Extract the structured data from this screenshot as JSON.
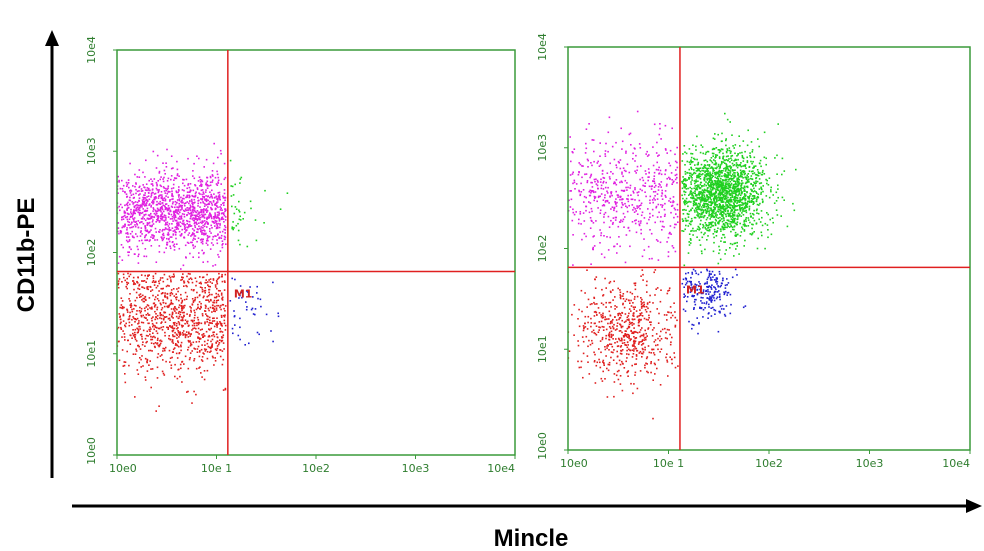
{
  "figure": {
    "ylabel": "CD11b-PE",
    "xlabel": "Mincle"
  },
  "chart_data": [
    {
      "type": "scatter",
      "scale": "log",
      "xlim": [
        1,
        10000
      ],
      "ylim": [
        1,
        10000
      ],
      "x_ticks": [
        "10e0",
        "10e 1",
        "10e2",
        "10e3",
        "10e4"
      ],
      "y_ticks": [
        "10e0",
        "10e1",
        "10e2",
        "10e3",
        "10e4"
      ],
      "quadrant_gate": {
        "x": 13,
        "y": 65
      },
      "gate_label": "M1",
      "colors": {
        "upper_left": "#e020e0",
        "upper_right": "#20d020",
        "lower_left": "#e02020",
        "lower_right": "#2020d0",
        "frame": "#3a9a3a",
        "gate": "#e02020"
      },
      "populations": [
        {
          "quadrant": "upper_left",
          "count": 1300,
          "x_range": [
            1,
            12.5
          ],
          "y_center": 250,
          "y_spread": 0.2
        },
        {
          "quadrant": "lower_left",
          "count": 1000,
          "x_range": [
            1,
            12.5
          ],
          "y_center": 22,
          "y_spread": 0.28
        },
        {
          "quadrant": "upper_right",
          "count": 40,
          "x_center": 16,
          "y_center": 250,
          "spread": 0.18
        },
        {
          "quadrant": "lower_right",
          "count": 45,
          "x_center": 20,
          "y_center": 30,
          "spread": 0.16
        }
      ]
    },
    {
      "type": "scatter",
      "scale": "log",
      "xlim": [
        1,
        10000
      ],
      "ylim": [
        1,
        10000
      ],
      "x_ticks": [
        "10e0",
        "10e 1",
        "10e2",
        "10e3",
        "10e4"
      ],
      "y_ticks": [
        "10e0",
        "10e1",
        "10e2",
        "10e3",
        "10e4"
      ],
      "quadrant_gate": {
        "x": 13,
        "y": 65
      },
      "gate_label": "M1",
      "colors": {
        "upper_left": "#e020e0",
        "upper_right": "#20d020",
        "lower_left": "#e02020",
        "lower_right": "#2020d0",
        "frame": "#3a9a3a",
        "gate": "#e02020"
      },
      "populations": [
        {
          "quadrant": "upper_left",
          "count": 550,
          "x_range": [
            1,
            12.5
          ],
          "y_center": 350,
          "y_spread": 0.28
        },
        {
          "quadrant": "upper_right",
          "count": 1800,
          "x_center": 35,
          "y_center": 350,
          "spread": 0.22
        },
        {
          "quadrant": "lower_left",
          "count": 600,
          "x_center": 4,
          "y_center": 15,
          "spread": 0.24
        },
        {
          "quadrant": "lower_right",
          "count": 220,
          "x_center": 25,
          "y_center": 35,
          "spread": 0.14
        }
      ]
    }
  ]
}
